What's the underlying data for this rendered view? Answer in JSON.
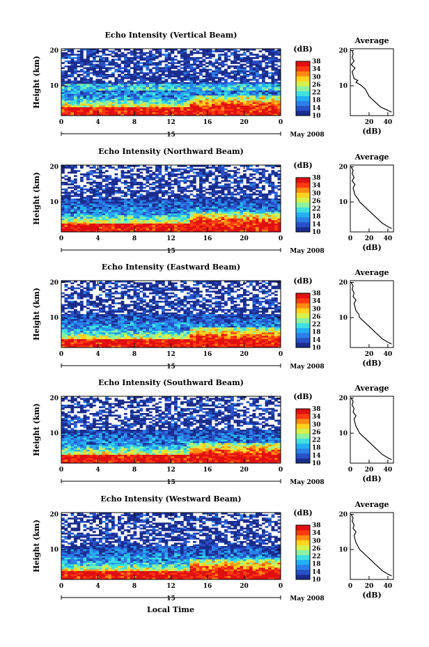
{
  "figure": {
    "xlabel": "Local Time",
    "date_label": "May 2008",
    "colorbar_unit": "(dB)",
    "colorbar_ticks": [
      "10",
      "14",
      "18",
      "22",
      "26",
      "30",
      "34",
      "38"
    ],
    "colorbar_colors": [
      "#1a2c8c",
      "#2850c8",
      "#2a80e8",
      "#22b0f0",
      "#3fe0e0",
      "#8cf2a0",
      "#d8f04a",
      "#ffd21e",
      "#ff8c10",
      "#ff3a10",
      "#e01010"
    ]
  },
  "chart_data": [
    {
      "type": "heatmap",
      "title": "Echo Intensity (Vertical Beam)",
      "ylabel": "Height (km)",
      "x_ticks": [
        "0",
        "4",
        "8",
        "12",
        "16",
        "20",
        "0"
      ],
      "x_day_tick": "15",
      "xlim": [
        0,
        24
      ],
      "y_ticks": [
        "10",
        "20"
      ],
      "ylim": [
        1.5,
        20.5
      ],
      "colorbar_range": [
        10,
        38
      ],
      "profile": {
        "title": "Average",
        "xlabel": "(dB)",
        "x_ticks": [
          "20",
          "40"
        ],
        "xlim": [
          0,
          46
        ],
        "y_ticks": [
          "10",
          "20"
        ],
        "height_km": [
          2.5,
          3.0,
          3.5,
          4.0,
          5.0,
          6.0,
          7.0,
          8.0,
          9.0,
          10.0,
          11.0,
          11.5,
          12.0,
          13.0,
          14.0,
          15.0,
          16.0,
          17.0,
          18.0,
          19.0,
          20.0
        ],
        "avg_db": [
          44,
          40,
          36,
          32,
          28,
          24,
          20,
          18,
          16,
          12,
          6,
          8,
          4,
          3,
          2,
          5,
          1,
          4,
          2,
          3,
          2
        ]
      }
    },
    {
      "type": "heatmap",
      "title": "Echo Intensity (Northward Beam)",
      "ylabel": "Height (km)",
      "x_ticks": [
        "0",
        "4",
        "8",
        "12",
        "16",
        "20",
        "0"
      ],
      "x_day_tick": "15",
      "xlim": [
        0,
        24
      ],
      "y_ticks": [
        "10",
        "20"
      ],
      "ylim": [
        1.5,
        20.5
      ],
      "colorbar_range": [
        10,
        38
      ],
      "profile": {
        "title": "Average",
        "xlabel": "(dB)",
        "x_ticks": [
          "0",
          "20",
          "40"
        ],
        "xlim": [
          0,
          46
        ],
        "y_ticks": [
          "10",
          "20"
        ],
        "height_km": [
          2.5,
          3.0,
          4.0,
          5.0,
          6.0,
          7.0,
          8.0,
          9.0,
          10.0,
          11.0,
          12.0,
          13.0,
          14.0,
          15.0,
          16.0,
          17.0,
          18.0,
          19.0,
          20.0
        ],
        "avg_db": [
          44,
          40,
          34,
          30,
          26,
          22,
          18,
          14,
          10,
          8,
          5,
          4,
          3,
          5,
          2,
          4,
          2,
          3,
          1
        ]
      }
    },
    {
      "type": "heatmap",
      "title": "Echo Intensity (Eastward Beam)",
      "ylabel": "Height (km)",
      "x_ticks": [
        "0",
        "4",
        "8",
        "12",
        "16",
        "20",
        "0"
      ],
      "x_day_tick": "15",
      "xlim": [
        0,
        24
      ],
      "y_ticks": [
        "10",
        "20"
      ],
      "ylim": [
        1.5,
        20.5
      ],
      "colorbar_range": [
        10,
        38
      ],
      "profile": {
        "title": "Average",
        "xlabel": "(dB)",
        "x_ticks": [
          "20",
          "40"
        ],
        "xlim": [
          0,
          46
        ],
        "y_ticks": [
          "10",
          "20"
        ],
        "height_km": [
          2.5,
          3.0,
          4.0,
          5.0,
          6.0,
          7.0,
          8.0,
          9.0,
          10.0,
          11.0,
          12.0,
          13.0,
          14.0,
          15.0,
          16.0,
          17.0,
          18.0,
          19.0,
          20.0
        ],
        "avg_db": [
          44,
          40,
          34,
          30,
          26,
          22,
          18,
          14,
          10,
          9,
          6,
          5,
          4,
          6,
          3,
          4,
          2,
          3,
          1
        ]
      }
    },
    {
      "type": "heatmap",
      "title": "Echo Intensity (Southward Beam)",
      "ylabel": "Height (km)",
      "x_ticks": [
        "0",
        "4",
        "8",
        "12",
        "16",
        "20",
        "0"
      ],
      "x_day_tick": "15",
      "xlim": [
        0,
        24
      ],
      "y_ticks": [
        "10",
        "20"
      ],
      "ylim": [
        1.5,
        20.5
      ],
      "colorbar_range": [
        10,
        38
      ],
      "profile": {
        "title": "Average",
        "xlabel": "(dB)",
        "x_ticks": [
          "0",
          "20",
          "40"
        ],
        "xlim": [
          0,
          46
        ],
        "y_ticks": [
          "10",
          "20"
        ],
        "height_km": [
          2.5,
          3.0,
          4.0,
          5.0,
          6.0,
          7.0,
          8.0,
          9.0,
          10.0,
          11.0,
          12.0,
          13.0,
          14.0,
          15.0,
          16.0,
          17.0,
          18.0,
          19.0,
          20.0
        ],
        "avg_db": [
          44,
          40,
          34,
          30,
          26,
          22,
          18,
          14,
          10,
          8,
          6,
          5,
          4,
          6,
          3,
          4,
          2,
          3,
          1
        ]
      }
    },
    {
      "type": "heatmap",
      "title": "Echo Intensity (Westward Beam)",
      "ylabel": "Height (km)",
      "x_ticks": [
        "0",
        "4",
        "8",
        "12",
        "16",
        "20",
        "0"
      ],
      "x_day_tick": "15",
      "xlim": [
        0,
        24
      ],
      "y_ticks": [
        "10",
        "20"
      ],
      "ylim": [
        1.5,
        20.5
      ],
      "colorbar_range": [
        10,
        38
      ],
      "profile": {
        "title": "Average",
        "xlabel": "(dB)",
        "x_ticks": [
          "0",
          "20",
          "40"
        ],
        "xlim": [
          0,
          46
        ],
        "y_ticks": [
          "10",
          "20"
        ],
        "height_km": [
          2.5,
          3.0,
          4.0,
          5.0,
          6.0,
          7.0,
          8.0,
          9.0,
          10.0,
          11.0,
          12.0,
          13.0,
          14.0,
          15.0,
          16.0,
          17.0,
          18.0,
          19.0,
          20.0
        ],
        "avg_db": [
          44,
          40,
          34,
          30,
          26,
          22,
          18,
          14,
          10,
          8,
          6,
          5,
          4,
          6,
          3,
          4,
          2,
          3,
          1
        ]
      }
    }
  ]
}
